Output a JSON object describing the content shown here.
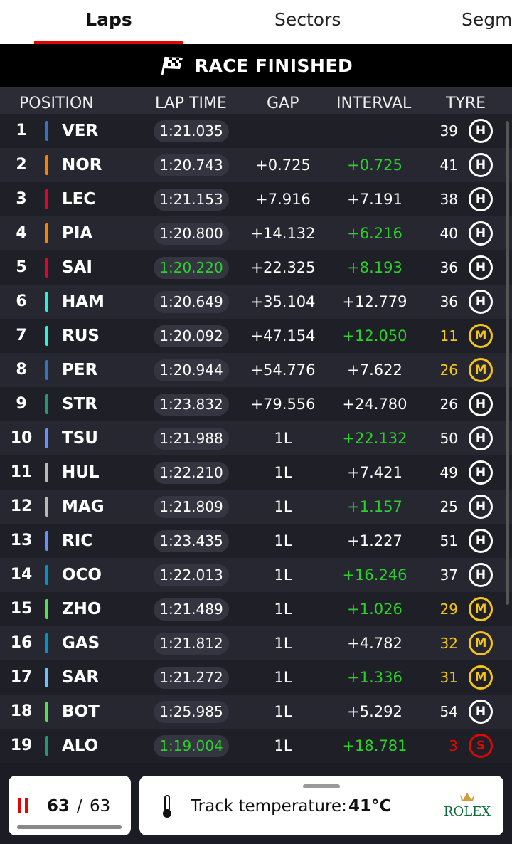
{
  "tabs": [
    "Laps",
    "Sectors",
    "Segments"
  ],
  "banner": "RACE FINISHED",
  "columns": [
    "POSITION",
    "LAP TIME",
    "GAP",
    "INTERVAL",
    "TYRE"
  ],
  "rows": [
    {
      "position": 1,
      "driver": "VER",
      "team_color": "#3671c6",
      "lap_time": "1:21.035",
      "lap_time_green": false,
      "gap": null,
      "interval": null,
      "interval_green": false,
      "tyre_age": 39,
      "tyre": "H"
    },
    {
      "position": 2,
      "driver": "NOR",
      "team_color": "#ff8000",
      "lap_time": "1:20.743",
      "lap_time_green": false,
      "gap": "+0.725",
      "interval": "+0.725",
      "interval_green": true,
      "tyre_age": 41,
      "tyre": "H"
    },
    {
      "position": 3,
      "driver": "LEC",
      "team_color": "#e8002d",
      "lap_time": "1:21.153",
      "lap_time_green": false,
      "gap": "+7.916",
      "interval": "+7.191",
      "interval_green": false,
      "tyre_age": 38,
      "tyre": "H"
    },
    {
      "position": 4,
      "driver": "PIA",
      "team_color": "#ff8000",
      "lap_time": "1:20.800",
      "lap_time_green": false,
      "gap": "+14.132",
      "interval": "+6.216",
      "interval_green": true,
      "tyre_age": 40,
      "tyre": "H"
    },
    {
      "position": 5,
      "driver": "SAI",
      "team_color": "#e8002d",
      "lap_time": "1:20.220",
      "lap_time_green": true,
      "gap": "+22.325",
      "interval": "+8.193",
      "interval_green": true,
      "tyre_age": 36,
      "tyre": "H"
    },
    {
      "position": 6,
      "driver": "HAM",
      "team_color": "#27f4d2",
      "lap_time": "1:20.649",
      "lap_time_green": false,
      "gap": "+35.104",
      "interval": "+12.779",
      "interval_green": false,
      "tyre_age": 36,
      "tyre": "H"
    },
    {
      "position": 7,
      "driver": "RUS",
      "team_color": "#27f4d2",
      "lap_time": "1:20.092",
      "lap_time_green": false,
      "gap": "+47.154",
      "interval": "+12.050",
      "interval_green": true,
      "tyre_age": 11,
      "tyre": "M"
    },
    {
      "position": 8,
      "driver": "PER",
      "team_color": "#3671c6",
      "lap_time": "1:20.944",
      "lap_time_green": false,
      "gap": "+54.776",
      "interval": "+7.622",
      "interval_green": false,
      "tyre_age": 26,
      "tyre": "M"
    },
    {
      "position": 9,
      "driver": "STR",
      "team_color": "#229971",
      "lap_time": "1:23.832",
      "lap_time_green": false,
      "gap": "+79.556",
      "interval": "+24.780",
      "interval_green": false,
      "tyre_age": 26,
      "tyre": "H"
    },
    {
      "position": 10,
      "driver": "TSU",
      "team_color": "#6692ff",
      "lap_time": "1:21.988",
      "lap_time_green": false,
      "gap": "1L",
      "interval": "+22.132",
      "interval_green": true,
      "tyre_age": 50,
      "tyre": "H"
    },
    {
      "position": 11,
      "driver": "HUL",
      "team_color": "#b6babd",
      "lap_time": "1:22.210",
      "lap_time_green": false,
      "gap": "1L",
      "interval": "+7.421",
      "interval_green": false,
      "tyre_age": 49,
      "tyre": "H"
    },
    {
      "position": 12,
      "driver": "MAG",
      "team_color": "#b6babd",
      "lap_time": "1:21.809",
      "lap_time_green": false,
      "gap": "1L",
      "interval": "+1.157",
      "interval_green": true,
      "tyre_age": 25,
      "tyre": "H"
    },
    {
      "position": 13,
      "driver": "RIC",
      "team_color": "#6692ff",
      "lap_time": "1:23.435",
      "lap_time_green": false,
      "gap": "1L",
      "interval": "+1.227",
      "interval_green": false,
      "tyre_age": 51,
      "tyre": "H"
    },
    {
      "position": 14,
      "driver": "OCO",
      "team_color": "#0093cc",
      "lap_time": "1:22.013",
      "lap_time_green": false,
      "gap": "1L",
      "interval": "+16.246",
      "interval_green": true,
      "tyre_age": 37,
      "tyre": "H"
    },
    {
      "position": 15,
      "driver": "ZHO",
      "team_color": "#52e252",
      "lap_time": "1:21.489",
      "lap_time_green": false,
      "gap": "1L",
      "interval": "+1.026",
      "interval_green": true,
      "tyre_age": 29,
      "tyre": "M"
    },
    {
      "position": 16,
      "driver": "GAS",
      "team_color": "#0093cc",
      "lap_time": "1:21.812",
      "lap_time_green": false,
      "gap": "1L",
      "interval": "+4.782",
      "interval_green": false,
      "tyre_age": 32,
      "tyre": "M"
    },
    {
      "position": 17,
      "driver": "SAR",
      "team_color": "#64c4ff",
      "lap_time": "1:21.272",
      "lap_time_green": false,
      "gap": "1L",
      "interval": "+1.336",
      "interval_green": true,
      "tyre_age": 31,
      "tyre": "M"
    },
    {
      "position": 18,
      "driver": "BOT",
      "team_color": "#52e252",
      "lap_time": "1:25.985",
      "lap_time_green": false,
      "gap": "1L",
      "interval": "+5.292",
      "interval_green": false,
      "tyre_age": 54,
      "tyre": "H"
    },
    {
      "position": 19,
      "driver": "ALO",
      "team_color": "#229971",
      "lap_time": "1:19.004",
      "lap_time_green": true,
      "gap": "1L",
      "interval": "+18.781",
      "interval_green": true,
      "tyre_age": 3,
      "tyre": "S"
    }
  ],
  "footer": {
    "current_lap": 63,
    "separator": "/",
    "total_laps": 63,
    "temperature_label": "Track temperature:",
    "temperature": "41°C",
    "sponsor": "ROLEX"
  },
  "tyre_colors": {
    "H": "#ffffff",
    "M": "#f5c518",
    "S": "#e10600"
  }
}
